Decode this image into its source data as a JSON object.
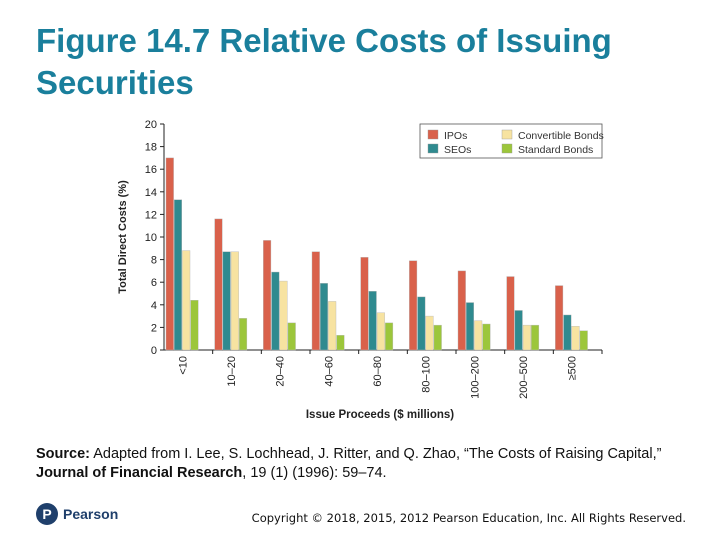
{
  "title": "Figure 14.7 Relative Costs of Issuing Securities",
  "source": {
    "label": "Source:",
    "text_1": " Adapted from I. Lee, S. Lochhead, J. Ritter, and Q. Zhao, “The Costs of Raising Capital,” ",
    "journal": "Journal of Financial Research",
    "text_2": ", 19 (1) (1996): 59–74."
  },
  "logo": {
    "mark": "P",
    "text": "Pearson"
  },
  "copyright": "Copyright © 2018, 2015, 2012 Pearson Education, Inc. All Rights Reserved.",
  "colors": {
    "title": "#1a7f9c",
    "IPOs": "#d9614b",
    "SEOs": "#2f8a8f",
    "Convertible Bonds": "#f7e3a1",
    "Standard Bonds": "#9cc63b"
  },
  "chart_data": {
    "type": "bar",
    "title": "",
    "xlabel": "Issue Proceeds ($ millions)",
    "ylabel": "Total Direct Costs (%)",
    "ylim": [
      0,
      20
    ],
    "yticks": [
      0,
      2,
      4,
      6,
      8,
      10,
      12,
      14,
      16,
      18,
      20
    ],
    "categories": [
      "<10",
      "10–20",
      "20–40",
      "40–60",
      "60–80",
      "80–100",
      "100–200",
      "200–500",
      "≥500"
    ],
    "series": [
      {
        "name": "IPOs",
        "values": [
          17.0,
          11.6,
          9.7,
          8.7,
          8.2,
          7.9,
          7.0,
          6.5,
          5.7
        ]
      },
      {
        "name": "SEOs",
        "values": [
          13.3,
          8.7,
          6.9,
          5.9,
          5.2,
          4.7,
          4.2,
          3.5,
          3.1
        ]
      },
      {
        "name": "Convertible Bonds",
        "values": [
          8.8,
          8.7,
          6.1,
          4.3,
          3.3,
          3.0,
          2.6,
          2.2,
          2.1
        ]
      },
      {
        "name": "Standard Bonds",
        "values": [
          4.4,
          2.8,
          2.4,
          1.3,
          2.4,
          2.2,
          2.3,
          2.2,
          1.7
        ]
      }
    ],
    "legend": {
      "placement": "top-right",
      "order": [
        "IPOs",
        "Convertible Bonds",
        "SEOs",
        "Standard Bonds"
      ]
    },
    "grid": false
  }
}
